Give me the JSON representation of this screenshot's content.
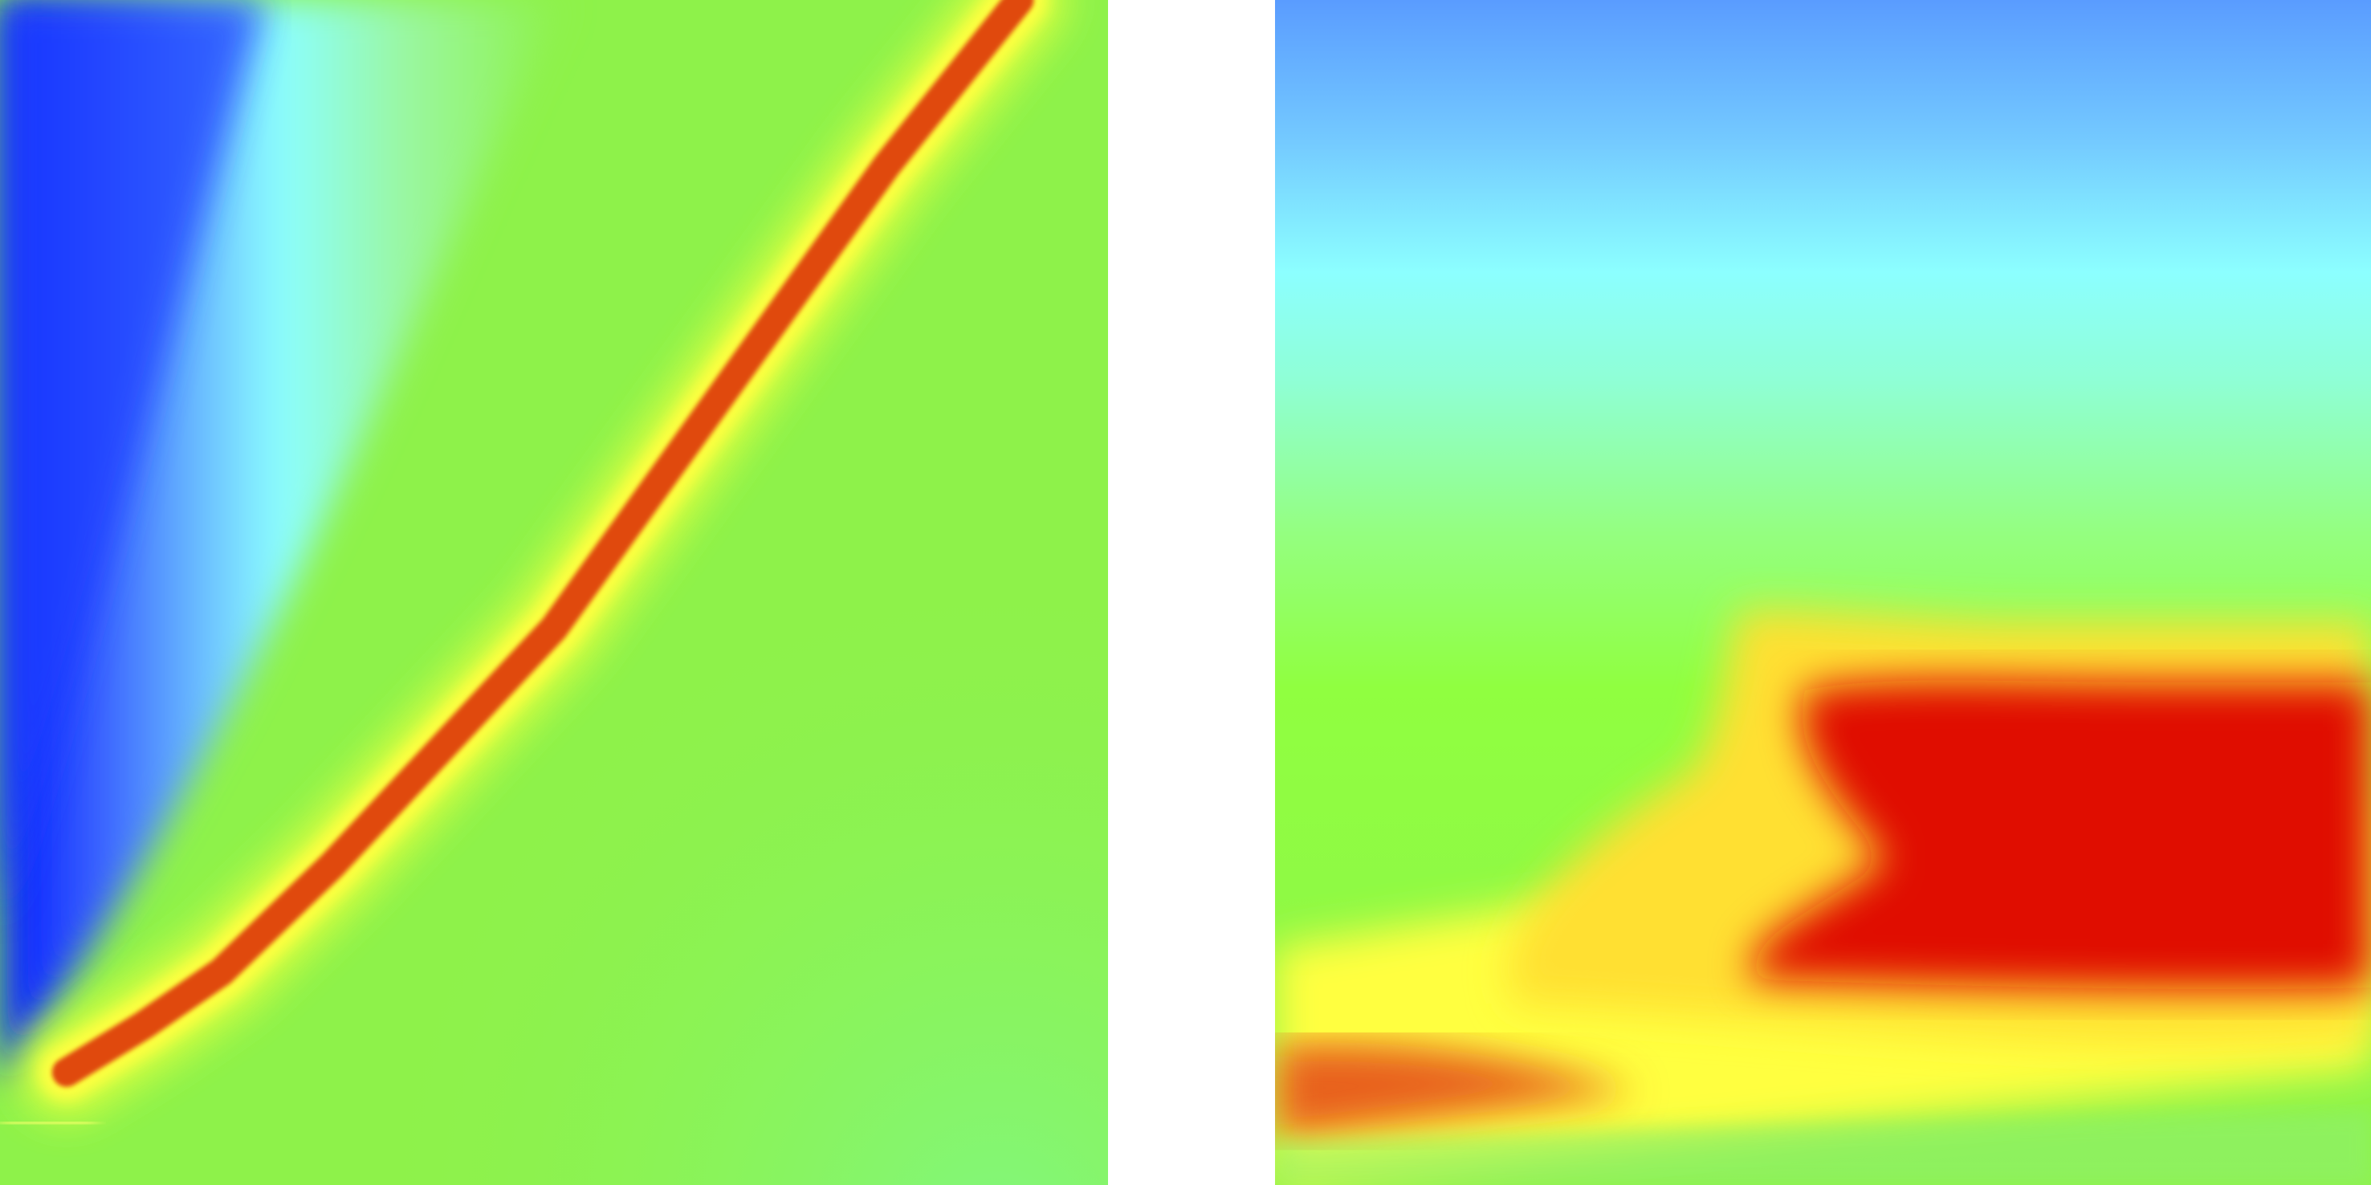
{
  "chart_data": [
    {
      "type": "heatmap",
      "title": "",
      "xlabel": "",
      "ylabel": "",
      "colormap": [
        "#0000ff",
        "#4f7df2",
        "#8cffff",
        "#90ff40",
        "#ffff40",
        "#e01000"
      ],
      "ridge": [
        [
          0.06,
          0.095
        ],
        [
          0.13,
          0.135
        ],
        [
          0.2,
          0.18
        ],
        [
          0.3,
          0.27
        ],
        [
          0.4,
          0.37
        ],
        [
          0.5,
          0.47
        ],
        [
          0.6,
          0.6
        ],
        [
          0.7,
          0.73
        ],
        [
          0.8,
          0.86
        ],
        [
          0.92,
          1.0
        ]
      ]
    },
    {
      "type": "heatmap",
      "title": "",
      "xlabel": "",
      "ylabel": "",
      "colormap": [
        "#5aa0ff",
        "#8cffff",
        "#90ff40",
        "#ffff40",
        "#e01000"
      ]
    }
  ]
}
